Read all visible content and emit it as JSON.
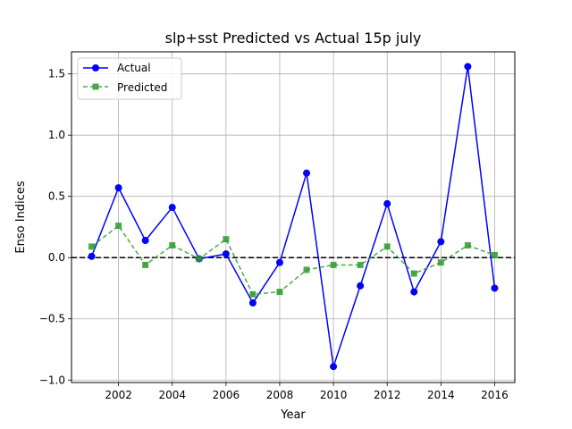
{
  "chart_data": {
    "type": "line",
    "title": "slp+sst Predicted vs Actual 15p july",
    "xlabel": "Year",
    "ylabel": "Enso Indices",
    "xlim": [
      2000.25,
      2016.75
    ],
    "ylim": [
      -1.02,
      1.68
    ],
    "x_ticks": [
      2002,
      2004,
      2006,
      2008,
      2010,
      2012,
      2014,
      2016
    ],
    "y_ticks": [
      -1.0,
      -0.5,
      0.0,
      0.5,
      1.0,
      1.5
    ],
    "x_tick_labels": [
      "2002",
      "2004",
      "2006",
      "2008",
      "2010",
      "2012",
      "2014",
      "2016"
    ],
    "y_tick_labels": [
      "−1.0",
      "−0.5",
      "0.0",
      "0.5",
      "1.0",
      "1.5"
    ],
    "grid": true,
    "zero_line": {
      "value": 0.0,
      "color": "#000000",
      "style": "dashed"
    },
    "legend": {
      "placement": "upper-left"
    },
    "x": [
      2001,
      2002,
      2003,
      2004,
      2005,
      2006,
      2007,
      2008,
      2009,
      2010,
      2011,
      2012,
      2013,
      2014,
      2015,
      2016
    ],
    "series": [
      {
        "name": "Actual",
        "color": "#0000ff",
        "line_style": "solid",
        "marker": "circle",
        "values": [
          0.01,
          0.57,
          0.14,
          0.41,
          -0.01,
          0.03,
          -0.37,
          -0.04,
          0.69,
          -0.89,
          -0.23,
          0.44,
          -0.28,
          0.13,
          1.56,
          -0.25
        ]
      },
      {
        "name": "Predicted",
        "color": "#2e9a2e",
        "line_style": "dashed",
        "marker": "square",
        "values": [
          0.09,
          0.26,
          -0.06,
          0.1,
          -0.01,
          0.15,
          -0.3,
          -0.28,
          -0.1,
          -0.06,
          -0.06,
          0.09,
          -0.13,
          -0.04,
          0.1,
          0.02
        ]
      }
    ]
  }
}
